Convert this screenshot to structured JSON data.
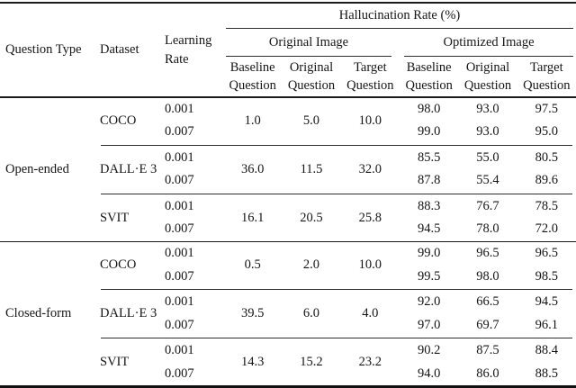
{
  "table": {
    "header": {
      "question_type": "Question Type",
      "dataset": "Dataset",
      "learning_rate_line1": "Learning",
      "learning_rate_line2": "Rate",
      "hallucination_rate": "Hallucination Rate (%)",
      "original_image": "Original Image",
      "optimized_image": "Optimized Image",
      "sub_columns": [
        {
          "line1": "Baseline",
          "line2": "Question"
        },
        {
          "line1": "Original",
          "line2": "Question"
        },
        {
          "line1": "Target",
          "line2": "Question"
        },
        {
          "line1": "Baseline",
          "line2": "Question"
        },
        {
          "line1": "Original",
          "line2": "Question"
        },
        {
          "line1": "Target",
          "line2": "Question"
        }
      ]
    },
    "sections": [
      {
        "question_type": "Open-ended",
        "groups": [
          {
            "dataset": "COCO",
            "lr": [
              "0.001",
              "0.007"
            ],
            "orig": [
              "1.0",
              "5.0",
              "10.0"
            ],
            "opt1": [
              "98.0",
              "93.0",
              "97.5"
            ],
            "opt2": [
              "99.0",
              "93.0",
              "95.0"
            ]
          },
          {
            "dataset": "DALL·E 3",
            "lr": [
              "0.001",
              "0.007"
            ],
            "orig": [
              "36.0",
              "11.5",
              "32.0"
            ],
            "opt1": [
              "85.5",
              "55.0",
              "80.5"
            ],
            "opt2": [
              "87.8",
              "55.4",
              "89.6"
            ]
          },
          {
            "dataset": "SVIT",
            "lr": [
              "0.001",
              "0.007"
            ],
            "orig": [
              "16.1",
              "20.5",
              "25.8"
            ],
            "opt1": [
              "88.3",
              "76.7",
              "78.5"
            ],
            "opt2": [
              "94.5",
              "78.0",
              "72.0"
            ]
          }
        ]
      },
      {
        "question_type": "Closed-form",
        "groups": [
          {
            "dataset": "COCO",
            "lr": [
              "0.001",
              "0.007"
            ],
            "orig": [
              "0.5",
              "2.0",
              "10.0"
            ],
            "opt1": [
              "99.0",
              "96.5",
              "96.5"
            ],
            "opt2": [
              "99.5",
              "98.0",
              "98.5"
            ]
          },
          {
            "dataset": "DALL·E 3",
            "lr": [
              "0.001",
              "0.007"
            ],
            "orig": [
              "39.5",
              "6.0",
              "4.0"
            ],
            "opt1": [
              "92.0",
              "66.5",
              "94.5"
            ],
            "opt2": [
              "97.0",
              "69.7",
              "96.1"
            ]
          },
          {
            "dataset": "SVIT",
            "lr": [
              "0.001",
              "0.007"
            ],
            "orig": [
              "14.3",
              "15.2",
              "23.2"
            ],
            "opt1": [
              "90.2",
              "87.5",
              "88.4"
            ],
            "opt2": [
              "94.0",
              "86.0",
              "88.5"
            ]
          }
        ]
      }
    ]
  }
}
